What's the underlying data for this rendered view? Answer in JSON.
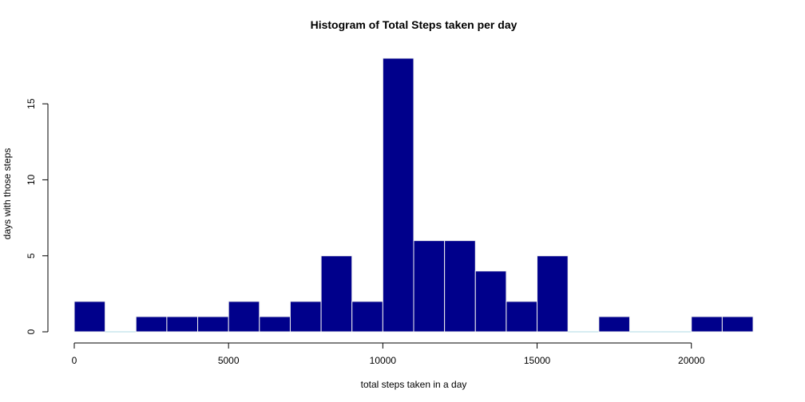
{
  "chart_data": {
    "type": "bar",
    "title": "Histogram of Total Steps taken per day",
    "xlabel": "total steps taken in a day",
    "ylabel": "days with those steps",
    "bin_edges": [
      0,
      1000,
      2000,
      3000,
      4000,
      5000,
      6000,
      7000,
      8000,
      9000,
      10000,
      11000,
      12000,
      13000,
      14000,
      15000,
      16000,
      17000,
      18000,
      19000,
      20000,
      21000,
      22000
    ],
    "values": [
      2,
      0,
      1,
      1,
      1,
      2,
      1,
      2,
      5,
      2,
      18,
      6,
      6,
      4,
      2,
      5,
      0,
      1,
      0,
      0,
      1,
      1
    ],
    "xlim": [
      0,
      22000
    ],
    "ylim": [
      0,
      18
    ],
    "x_ticks": [
      0,
      5000,
      10000,
      15000,
      20000
    ],
    "y_ticks": [
      0,
      5,
      10,
      15
    ],
    "grid": false,
    "colors": {
      "bar_fill": "#00008B",
      "bar_border": "#F0F0F0",
      "empty_bin": "#ADD8E6",
      "axis": "#000000"
    }
  }
}
